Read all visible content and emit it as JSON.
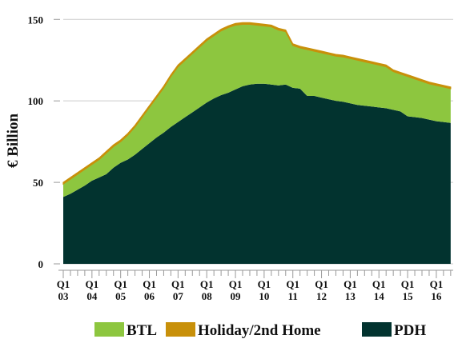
{
  "chart_data": {
    "type": "stacked_area",
    "y_label": "€ Billion",
    "categories": [
      "Q1 03",
      null,
      null,
      null,
      "Q1 04",
      null,
      null,
      null,
      "Q1 05",
      null,
      null,
      null,
      "Q1 06",
      null,
      null,
      null,
      "Q1 07",
      null,
      null,
      null,
      "Q1 08",
      null,
      null,
      null,
      "Q1 09",
      null,
      null,
      null,
      "Q1 10",
      null,
      null,
      null,
      "Q1 11",
      null,
      null,
      null,
      "Q1 12",
      null,
      null,
      null,
      "Q1 13",
      null,
      null,
      null,
      "Q1 14",
      null,
      null,
      null,
      "Q1 15",
      null,
      null,
      null,
      "Q1 16",
      null,
      null
    ],
    "series": [
      {
        "name": "BTL",
        "color": "#8dc63f",
        "values": [
          8,
          9,
          9.5,
          10,
          10,
          11,
          13,
          13,
          13,
          15,
          17,
          19.5,
          22,
          24.5,
          27.5,
          31,
          34,
          35,
          36,
          37,
          38,
          38.5,
          39.5,
          40,
          39.5,
          38,
          37,
          36,
          35.5,
          35.5,
          34,
          32.5,
          26,
          25,
          28.5,
          27.5,
          27.5,
          27.5,
          27.5,
          27.5,
          27.5,
          27.5,
          27,
          26.5,
          26,
          25.5,
          23.5,
          23,
          24.5,
          23.5,
          22.5,
          22,
          22,
          21.5,
          21
        ]
      },
      {
        "name": "Holiday/2nd Home",
        "color": "#c8900a",
        "values": [
          1,
          1,
          1,
          1,
          1,
          1,
          1,
          1,
          1,
          1,
          1,
          1,
          1,
          1,
          1,
          1,
          1,
          1,
          1,
          1,
          1,
          1,
          1,
          1,
          1,
          1,
          1,
          1,
          1,
          1,
          1,
          1,
          1,
          1,
          1,
          1,
          1,
          1,
          1,
          1,
          1,
          1,
          1,
          1,
          1,
          1,
          1,
          1,
          1,
          1,
          1,
          1,
          1,
          1,
          1
        ]
      },
      {
        "name": "PDH",
        "color": "#02332f",
        "values": [
          41,
          43,
          45.5,
          48,
          51,
          53,
          55,
          59,
          62,
          64,
          67,
          70.5,
          74,
          77.5,
          80.5,
          84,
          87,
          90,
          93,
          96,
          99,
          101.5,
          103.5,
          105,
          107,
          109,
          110,
          110.5,
          110.5,
          110,
          109.5,
          110,
          108,
          107.5,
          103,
          103,
          102,
          101,
          100,
          99.5,
          98.5,
          97.5,
          97,
          96.5,
          96,
          95.5,
          94.5,
          93.5,
          90.5,
          90,
          89.5,
          88.5,
          87.5,
          87,
          86.5
        ]
      }
    ],
    "ylim": [
      0,
      157
    ],
    "yticks": [
      0,
      50,
      100,
      150
    ],
    "grid": true
  }
}
